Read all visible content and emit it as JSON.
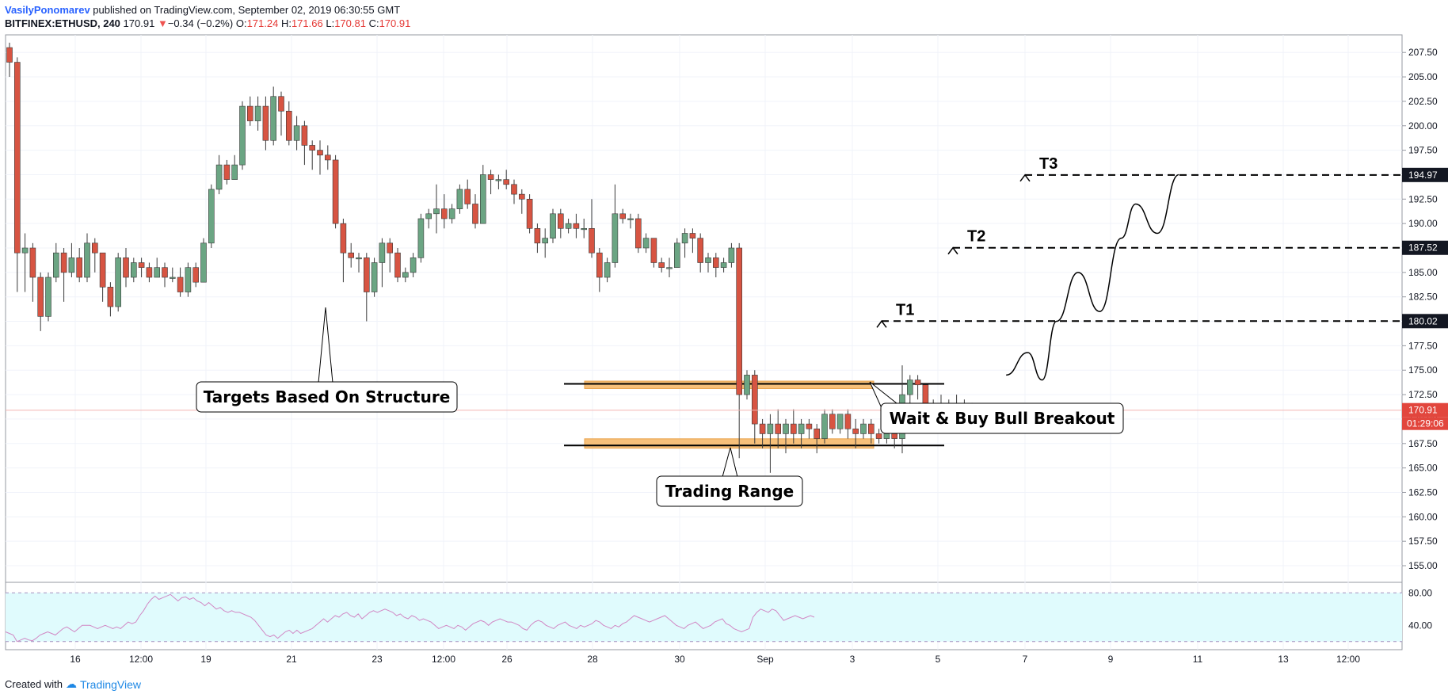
{
  "header": {
    "author": "VasilyPonomarev",
    "published_text": "published on TradingView.com, September 02, 2019 06:30:55 GMT",
    "symbol": "BITFINEX:ETHUSD, 240",
    "last": "170.91",
    "change_arrow": "▼",
    "change": "−0.34 (−0.2%)",
    "o_label": "O:",
    "o": "171.24",
    "h_label": "H:",
    "h": "171.66",
    "l_label": "L:",
    "l": "170.81",
    "c_label": "C:",
    "c": "170.91"
  },
  "footer": {
    "created_with": "Created with",
    "brand": "TradingView"
  },
  "colors": {
    "up": "#6ba583",
    "down": "#d75442",
    "target": "#000000",
    "zone_fill": "#f7c07a",
    "zone_stroke": "#e8a24a",
    "rsi_bg": "#e0fbfd",
    "rsi_line": "#d187c4",
    "last_price": "#e2463d"
  },
  "chart_data": {
    "type": "candlestick",
    "price_axis": {
      "ticks": [
        "207.50",
        "205.00",
        "202.50",
        "200.00",
        "197.50",
        "195.00",
        "192.50",
        "190.00",
        "187.50",
        "185.00",
        "182.50",
        "180.00",
        "177.50",
        "175.00",
        "172.50",
        "170.00",
        "167.50",
        "165.00",
        "162.50",
        "160.00",
        "157.50",
        "155.00"
      ],
      "range": [
        153.3,
        209.3
      ]
    },
    "time_axis": {
      "ticks": [
        "16",
        "12:00",
        "19",
        "21",
        "23",
        "12:00",
        "26",
        "28",
        "30",
        "Sep",
        "3",
        "5",
        "7",
        "9",
        "11",
        "13",
        "12:00"
      ],
      "range": [
        0,
        162
      ]
    },
    "candles": [
      [
        208,
        206.5,
        208.5,
        205
      ],
      [
        206.5,
        187,
        207,
        183
      ],
      [
        187,
        187.5,
        189,
        183
      ],
      [
        187.5,
        184.5,
        188,
        182
      ],
      [
        184.5,
        180.5,
        185,
        179
      ],
      [
        180.5,
        184.5,
        185,
        180
      ],
      [
        184.5,
        187,
        188,
        184
      ],
      [
        187,
        185,
        187.5,
        182
      ],
      [
        185,
        186.5,
        188,
        184.5
      ],
      [
        186.5,
        184.5,
        187.5,
        184
      ],
      [
        184.5,
        188,
        189,
        184
      ],
      [
        188,
        187,
        188.5,
        185
      ],
      [
        187,
        183.5,
        187,
        182
      ],
      [
        183.5,
        181.5,
        184,
        180.5
      ],
      [
        181.5,
        186.5,
        187,
        181
      ],
      [
        186.5,
        184.5,
        187.5,
        183.5
      ],
      [
        184.5,
        186,
        186.5,
        184
      ],
      [
        186,
        185.5,
        186.5,
        184.5
      ],
      [
        185.5,
        184.5,
        186,
        184
      ],
      [
        184.5,
        185.5,
        186.5,
        184.5
      ],
      [
        185.5,
        184.5,
        186,
        183.5
      ],
      [
        184.5,
        184.5,
        185.5,
        184
      ],
      [
        184.5,
        183,
        185.5,
        182.5
      ],
      [
        183,
        185.5,
        186,
        182.5
      ],
      [
        185.5,
        184,
        186,
        183.5
      ],
      [
        184,
        188,
        188.5,
        184
      ],
      [
        188,
        193.5,
        194,
        187.5
      ],
      [
        193.5,
        196,
        197,
        193
      ],
      [
        196,
        194.5,
        196.5,
        194
      ],
      [
        194.5,
        196,
        197,
        194.5
      ],
      [
        196,
        202,
        202.5,
        195.5
      ],
      [
        202,
        200.5,
        203,
        200
      ],
      [
        200.5,
        202,
        203,
        199.5
      ],
      [
        202,
        198.5,
        203,
        197.5
      ],
      [
        198.5,
        203,
        204,
        198
      ],
      [
        203,
        201.5,
        203.5,
        199
      ],
      [
        201.5,
        198.5,
        202.5,
        198
      ],
      [
        198.5,
        200,
        201,
        197.5
      ],
      [
        200,
        198,
        200.5,
        196
      ],
      [
        198,
        197.5,
        198.5,
        195.5
      ],
      [
        197.5,
        197,
        198.5,
        195
      ],
      [
        197,
        196.5,
        198,
        195.5
      ],
      [
        196.5,
        190,
        197,
        189.5
      ],
      [
        190,
        187,
        190.5,
        184
      ],
      [
        187,
        186.5,
        188,
        185.5
      ],
      [
        186.5,
        186.5,
        187,
        185
      ],
      [
        186.5,
        183,
        187,
        180
      ],
      [
        183,
        186,
        186.5,
        182.5
      ],
      [
        186,
        188,
        188.5,
        183.5
      ],
      [
        188,
        187,
        188.5,
        185
      ],
      [
        187,
        184.5,
        187.5,
        184
      ],
      [
        184.5,
        185,
        185.5,
        184
      ],
      [
        185,
        186.5,
        187,
        184.5
      ],
      [
        186.5,
        190.5,
        191,
        186
      ],
      [
        190.5,
        191,
        191.5,
        189.5
      ],
      [
        191,
        191.5,
        194,
        189
      ],
      [
        191.5,
        190.5,
        193,
        189.5
      ],
      [
        190.5,
        191.5,
        192,
        190
      ],
      [
        191.5,
        193.5,
        194,
        191
      ],
      [
        193.5,
        192,
        194.5,
        191.5
      ],
      [
        192,
        190,
        193,
        189.5
      ],
      [
        190,
        195,
        196,
        190
      ],
      [
        195,
        194.5,
        195.5,
        193
      ],
      [
        194.5,
        194.5,
        195,
        193.5
      ],
      [
        194.5,
        194,
        195.5,
        193.5
      ],
      [
        194,
        193,
        194.5,
        192
      ],
      [
        193,
        192.5,
        193.5,
        191
      ],
      [
        192.5,
        189.5,
        193,
        189
      ],
      [
        189.5,
        188,
        190,
        187
      ],
      [
        188,
        188.5,
        189.5,
        186.5
      ],
      [
        188.5,
        191,
        191.5,
        188
      ],
      [
        191,
        189.5,
        191.5,
        188.5
      ],
      [
        189.5,
        190,
        190.5,
        189
      ],
      [
        190,
        189.5,
        191,
        188.5
      ],
      [
        189.5,
        189.5,
        190.5,
        188.5
      ],
      [
        189.5,
        187,
        192.5,
        186.5
      ],
      [
        187,
        184.5,
        187.5,
        183
      ],
      [
        184.5,
        186,
        186.5,
        184
      ],
      [
        186,
        191,
        194,
        185.5
      ],
      [
        191,
        190.5,
        191.5,
        190
      ],
      [
        190.5,
        190.5,
        191,
        189.5
      ],
      [
        190.5,
        187.5,
        191,
        187
      ],
      [
        187.5,
        188.5,
        189,
        187
      ],
      [
        188.5,
        186,
        188.5,
        185.5
      ],
      [
        186,
        185.5,
        186.5,
        185
      ],
      [
        185.5,
        185.5,
        186.5,
        184.5
      ],
      [
        185.5,
        188,
        188.5,
        185.5
      ],
      [
        188,
        189,
        189.5,
        186.5
      ],
      [
        189,
        188.5,
        189.5,
        187
      ],
      [
        188.5,
        186,
        189,
        185
      ],
      [
        186,
        186.5,
        187,
        185
      ],
      [
        186.5,
        185.5,
        187,
        184.5
      ],
      [
        185.5,
        186,
        186.5,
        185
      ],
      [
        186,
        187.5,
        188,
        185.5
      ],
      [
        187.5,
        172.5,
        188,
        166
      ],
      [
        172.5,
        174.5,
        175,
        172
      ],
      [
        174.5,
        169.5,
        175,
        167.5
      ],
      [
        169.5,
        168.5,
        170,
        167
      ],
      [
        168.5,
        169.5,
        170.5,
        164.5
      ],
      [
        169.5,
        168.5,
        171,
        167
      ],
      [
        168.5,
        169.5,
        170,
        166.5
      ],
      [
        169.5,
        168.5,
        171,
        167.5
      ],
      [
        168.5,
        169.5,
        170,
        167
      ],
      [
        169.5,
        169,
        170,
        168
      ],
      [
        169,
        168,
        169.5,
        166.5
      ],
      [
        168,
        170.5,
        171,
        167.5
      ],
      [
        170.5,
        169,
        171,
        168.5
      ],
      [
        169,
        170.5,
        170.5,
        168.5
      ],
      [
        170.5,
        169,
        171,
        168
      ],
      [
        169,
        168.5,
        170,
        167
      ],
      [
        168.5,
        169.5,
        170,
        168
      ],
      [
        169.5,
        168.5,
        170,
        167.5
      ],
      [
        168.5,
        168,
        169,
        167.5
      ],
      [
        168,
        168.5,
        169,
        167.5
      ],
      [
        168.5,
        168,
        169,
        167
      ],
      [
        168,
        172.5,
        175.5,
        166.5
      ],
      [
        172.5,
        174,
        174.5,
        171.5
      ],
      [
        174,
        173.5,
        174.5,
        172
      ],
      [
        173.5,
        171,
        173.5,
        170
      ],
      [
        171,
        171.5,
        172,
        168.5
      ],
      [
        171.5,
        171.5,
        172.5,
        169
      ],
      [
        171.5,
        171.5,
        172,
        170.5
      ],
      [
        171.5,
        171.5,
        172.5,
        170.5
      ],
      [
        171.5,
        171.3,
        172,
        170.8
      ],
      [
        171.24,
        170.91,
        171.66,
        170.81
      ]
    ],
    "targets": [
      {
        "name": "T1",
        "price": 180.02,
        "label": "180.02"
      },
      {
        "name": "T2",
        "price": 187.52,
        "label": "187.52"
      },
      {
        "name": "T3",
        "price": 194.97,
        "label": "194.97"
      }
    ],
    "zones": [
      {
        "top": 173.8,
        "bottom": 173.2
      },
      {
        "top": 167.9,
        "bottom": 167.1
      }
    ],
    "range_lines": [
      173.6,
      167.3
    ],
    "last_price": {
      "label": "170.91",
      "price": 170.91,
      "countdown": "01:29:06"
    },
    "projection": [
      [
        139,
        174.5
      ],
      [
        142,
        176.8
      ],
      [
        144,
        174
      ],
      [
        146,
        180
      ],
      [
        149,
        185
      ],
      [
        152,
        181
      ],
      [
        155,
        188.5
      ],
      [
        157,
        192
      ],
      [
        160,
        189
      ],
      [
        163,
        195
      ]
    ],
    "annotations": {
      "structure": "Targets Based On Structure",
      "breakout": "Wait & Buy Bull Breakout",
      "range": "Trading Range"
    },
    "rsi": {
      "ticks": [
        "80.00",
        "40.00"
      ],
      "bands": [
        80,
        20
      ],
      "range": [
        10,
        90
      ],
      "values": [
        32,
        30,
        28,
        20,
        22,
        24,
        22,
        21,
        24,
        28,
        30,
        32,
        30,
        28,
        32,
        36,
        38,
        35,
        32,
        36,
        40,
        40,
        40,
        38,
        36,
        38,
        40,
        38,
        36,
        38,
        36,
        40,
        44,
        42,
        44,
        52,
        58,
        66,
        72,
        76,
        72,
        74,
        76,
        78,
        74,
        70,
        74,
        75,
        72,
        74,
        70,
        68,
        64,
        68,
        64,
        60,
        62,
        58,
        56,
        58,
        56,
        56,
        54,
        52,
        50,
        46,
        40,
        34,
        28,
        26,
        28,
        24,
        28,
        32,
        34,
        30,
        34,
        30,
        32,
        34,
        36,
        40,
        44,
        48,
        44,
        48,
        52,
        50,
        54,
        56,
        52,
        50,
        54,
        48,
        52,
        56,
        58,
        56,
        58,
        60,
        58,
        56,
        52,
        54,
        50,
        48,
        52,
        50,
        46,
        48,
        46,
        44,
        40,
        36,
        38,
        40,
        38,
        36,
        40,
        38,
        34,
        38,
        42,
        44,
        46,
        44,
        40,
        44,
        46,
        48,
        46,
        44,
        44,
        42,
        40,
        36,
        34,
        40,
        44,
        46,
        44,
        40,
        38,
        36,
        40,
        42,
        44,
        40,
        38,
        36,
        40,
        38,
        40,
        42,
        46,
        44,
        40,
        38,
        36,
        40,
        38,
        42,
        44,
        48,
        52,
        50,
        48,
        46,
        44,
        46,
        48,
        50,
        52,
        48,
        44,
        40,
        38,
        36,
        40,
        42,
        44,
        40,
        36,
        38,
        40,
        44,
        46,
        48,
        42,
        40,
        36,
        34,
        32,
        34,
        36,
        50,
        56,
        60,
        58,
        56,
        60,
        58,
        52,
        46,
        48,
        50,
        52,
        50,
        48,
        50,
        52,
        50
      ]
    }
  }
}
